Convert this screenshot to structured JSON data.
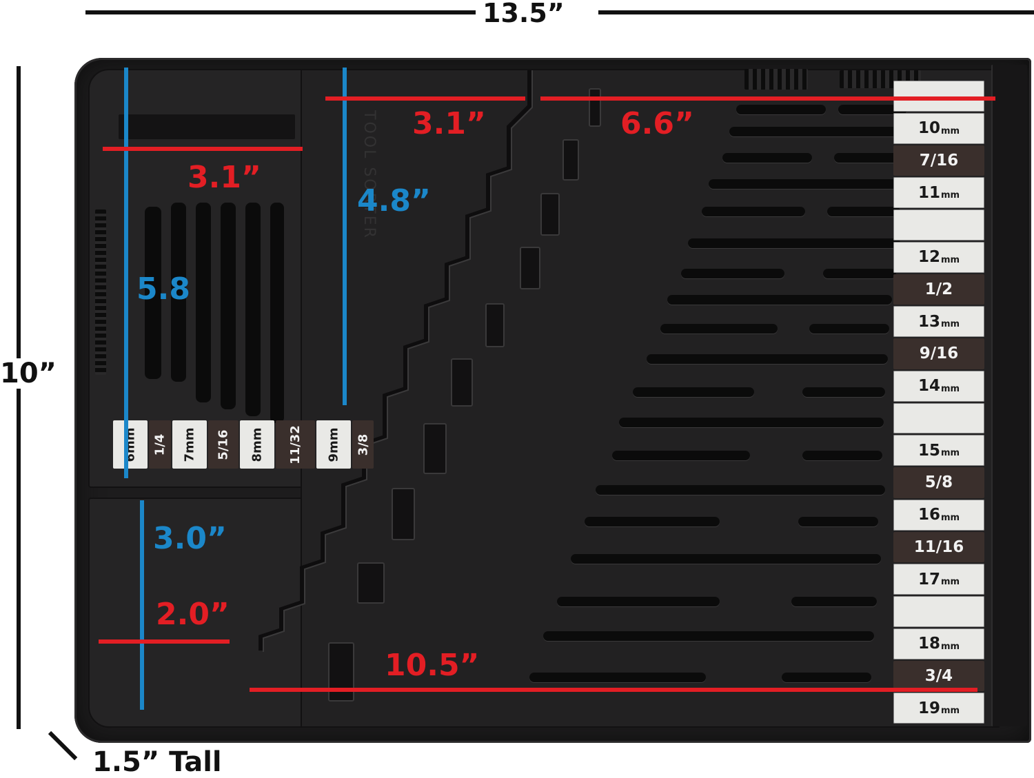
{
  "dimensions": {
    "overall_width": "13.5”",
    "overall_height": "10”",
    "depth": "1.5” Tall",
    "top_left_width": "3.1”",
    "top_middle_width": "3.1”",
    "top_right_width": "6.6”",
    "left_height": "5.8",
    "middle_height": "4.8”",
    "bottom_left_height": "3.0”",
    "bottom_left_width": "2.0”",
    "bottom_width": "10.5”"
  },
  "brand": "TOOL SORTER",
  "wrench_sizes": [
    {
      "size": "",
      "unit": "",
      "light": true
    },
    {
      "size": "10",
      "unit": "mm",
      "light": true
    },
    {
      "size": "7/16",
      "unit": "",
      "light": false
    },
    {
      "size": "11",
      "unit": "mm",
      "light": true
    },
    {
      "size": "",
      "unit": "",
      "light": true
    },
    {
      "size": "12",
      "unit": "mm",
      "light": true
    },
    {
      "size": "1/2",
      "unit": "",
      "light": false
    },
    {
      "size": "13",
      "unit": "mm",
      "light": true
    },
    {
      "size": "9/16",
      "unit": "",
      "light": false
    },
    {
      "size": "14",
      "unit": "mm",
      "light": true
    },
    {
      "size": "",
      "unit": "",
      "light": true
    },
    {
      "size": "15",
      "unit": "mm",
      "light": true
    },
    {
      "size": "5/8",
      "unit": "",
      "light": false
    },
    {
      "size": "16",
      "unit": "mm",
      "light": true
    },
    {
      "size": "11/16",
      "unit": "",
      "light": false
    },
    {
      "size": "17",
      "unit": "mm",
      "light": true
    },
    {
      "size": "",
      "unit": "",
      "light": true
    },
    {
      "size": "18",
      "unit": "mm",
      "light": true
    },
    {
      "size": "3/4",
      "unit": "",
      "light": false
    },
    {
      "size": "19",
      "unit": "mm",
      "light": true
    }
  ],
  "small_sizes": [
    {
      "label": "6mm",
      "light": true
    },
    {
      "label": "1/4",
      "light": false
    },
    {
      "label": "7mm",
      "light": true
    },
    {
      "label": "5/16",
      "light": false
    },
    {
      "label": "8mm",
      "light": true
    },
    {
      "label": "11/32",
      "light": false
    },
    {
      "label": "9mm",
      "light": true
    },
    {
      "label": "3/8",
      "light": false
    }
  ],
  "colors": {
    "dimension_black": "#111111",
    "dimension_red": "#e31e24",
    "dimension_blue": "#1b87c9",
    "tray": "#1d1c1d"
  }
}
